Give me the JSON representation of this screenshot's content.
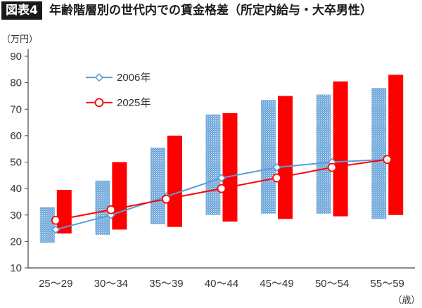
{
  "header": {
    "badge": "図表4",
    "title": "年齢階層別の世代内での賃金格差（所定内給与・大卒男性）"
  },
  "chart_data": {
    "type": "bar",
    "title": "年齢階層別の世代内での賃金格差（所定内給与・大卒男性）",
    "ylabel": "（万円）",
    "xlabel": "（歳）",
    "ylim": [
      10,
      90
    ],
    "yticks": [
      10,
      20,
      30,
      40,
      50,
      60,
      70,
      80,
      90
    ],
    "categories": [
      "25〜29",
      "30〜34",
      "35〜39",
      "40〜44",
      "45〜49",
      "50〜54",
      "55〜59"
    ],
    "legend_position": "top-left",
    "grid": false,
    "series": [
      {
        "name": "2006年",
        "color": "#5b9bd5",
        "range_low": [
          19.5,
          22.5,
          26.5,
          30,
          30.5,
          30.5,
          28.5
        ],
        "range_high": [
          33,
          43,
          55.5,
          68,
          73.5,
          75.5,
          78
        ],
        "line_values": [
          24.5,
          30,
          37,
          44,
          48,
          50,
          51
        ]
      },
      {
        "name": "2025年",
        "color": "#ff0000",
        "range_low": [
          23,
          24.5,
          25.5,
          27.5,
          28.5,
          29.5,
          30
        ],
        "range_high": [
          39.5,
          50,
          60,
          68.5,
          75,
          80.5,
          83
        ],
        "line_values": [
          28,
          32,
          36,
          40,
          44,
          48,
          51
        ]
      }
    ]
  }
}
